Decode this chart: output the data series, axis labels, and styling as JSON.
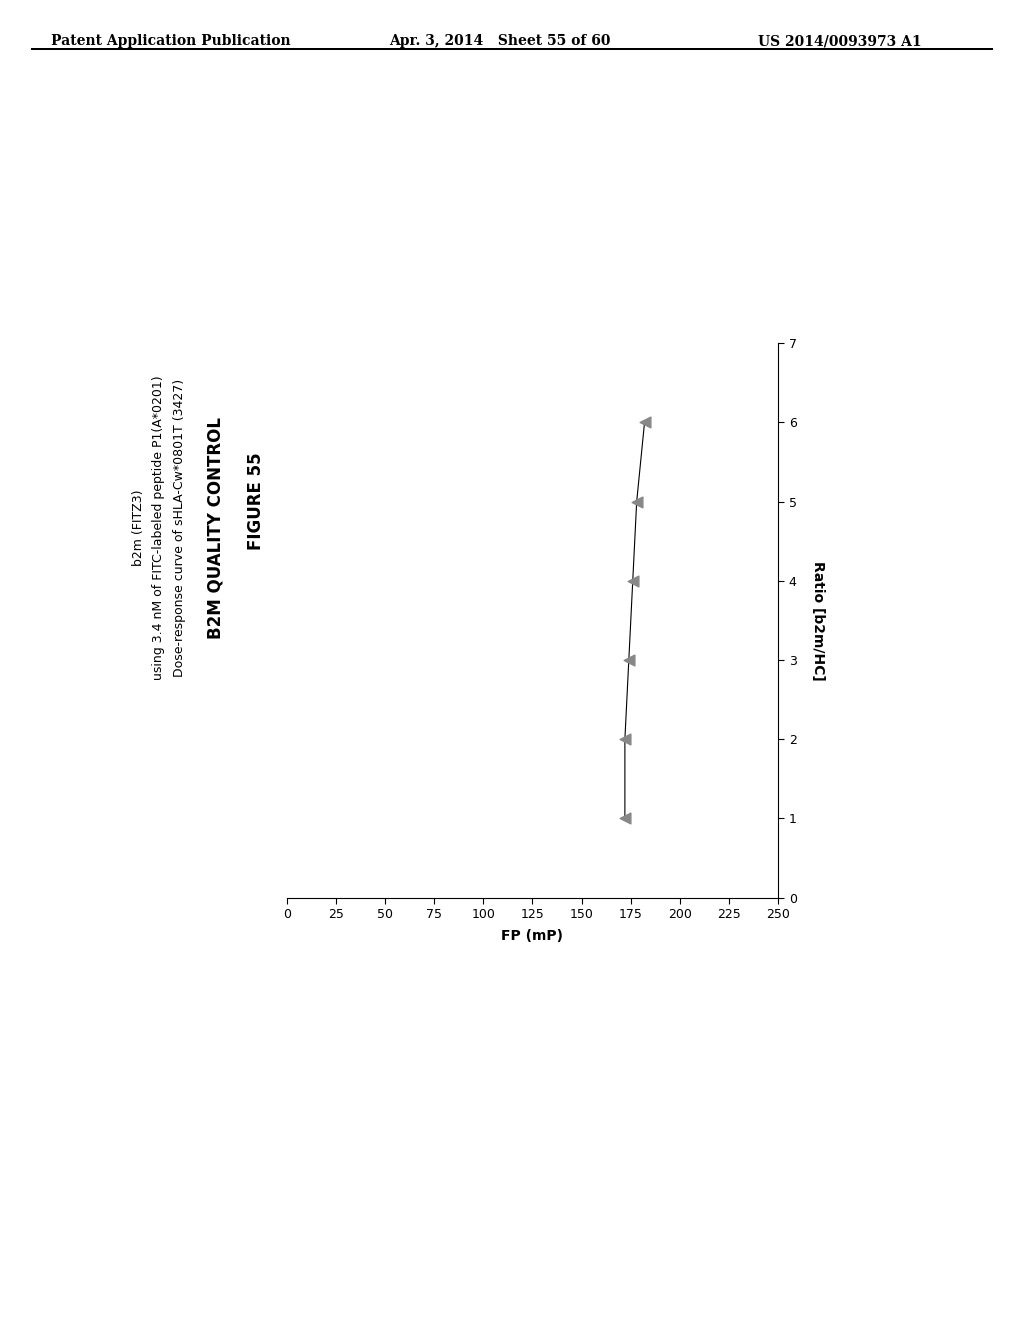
{
  "header_left": "Patent Application Publication",
  "header_mid": "Apr. 3, 2014   Sheet 55 of 60",
  "header_right": "US 2014/0093973 A1",
  "figure_label": "FIGURE 55",
  "title_line1": "B2M QUALITY CONTROL",
  "title_line2": "Dose-response curve of sHLA-Cw*0801T (3427)",
  "title_line3": "using 3.4 nM of FITC-labeled peptide P1(A*0201)",
  "title_line4": "b2m (FITZ3)",
  "xlabel": "FP (mP)",
  "ylabel": "Ratio [b2m/HC]",
  "x_ticks": [
    0,
    25,
    50,
    75,
    100,
    125,
    150,
    175,
    200,
    225,
    250
  ],
  "x_lim": [
    0,
    250
  ],
  "y_ticks": [
    0,
    1,
    2,
    3,
    4,
    5,
    6,
    7
  ],
  "y_lim": [
    0,
    7
  ],
  "data_fp": [
    172,
    172,
    174,
    176,
    178,
    182
  ],
  "data_ratio": [
    1,
    2,
    3,
    4,
    5,
    6
  ],
  "marker_color": "#888888",
  "line_color": "#000000",
  "background_color": "#ffffff",
  "text_color": "#000000",
  "header_fontsize": 10,
  "figure_label_fontsize": 12,
  "title_fontsize": 12,
  "subtitle_fontsize": 9,
  "axis_label_fontsize": 10,
  "tick_fontsize": 9
}
